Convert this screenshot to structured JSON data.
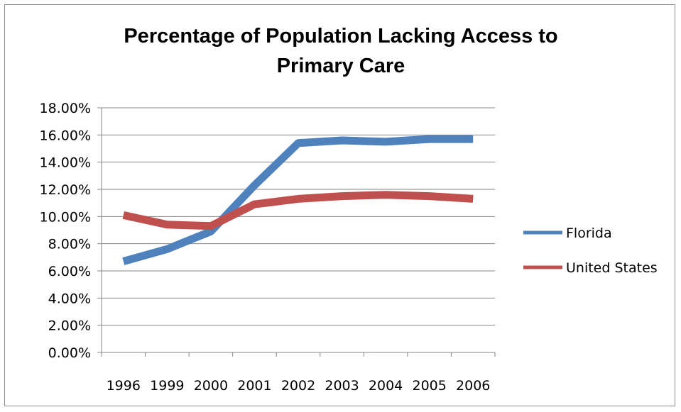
{
  "chart_data": {
    "type": "line",
    "title": "Percentage of Population Lacking Access to\nPrimary Care",
    "categories": [
      "1996",
      "1999",
      "2000",
      "2001",
      "2002",
      "2003",
      "2004",
      "2005",
      "2006"
    ],
    "y_ticks": [
      "0.00%",
      "2.00%",
      "4.00%",
      "6.00%",
      "8.00%",
      "10.00%",
      "12.00%",
      "14.00%",
      "16.00%",
      "18.00%"
    ],
    "ylim": [
      0,
      18
    ],
    "grid": true,
    "legend_position": "right",
    "series": [
      {
        "name": "Florida",
        "color": "#4f81bd",
        "values": [
          6.7,
          7.6,
          8.9,
          12.3,
          15.4,
          15.6,
          15.5,
          15.7,
          15.7
        ]
      },
      {
        "name": "United States",
        "color": "#c0504d",
        "values": [
          10.1,
          9.4,
          9.3,
          10.9,
          11.3,
          11.5,
          11.6,
          11.5,
          11.3
        ]
      }
    ]
  }
}
